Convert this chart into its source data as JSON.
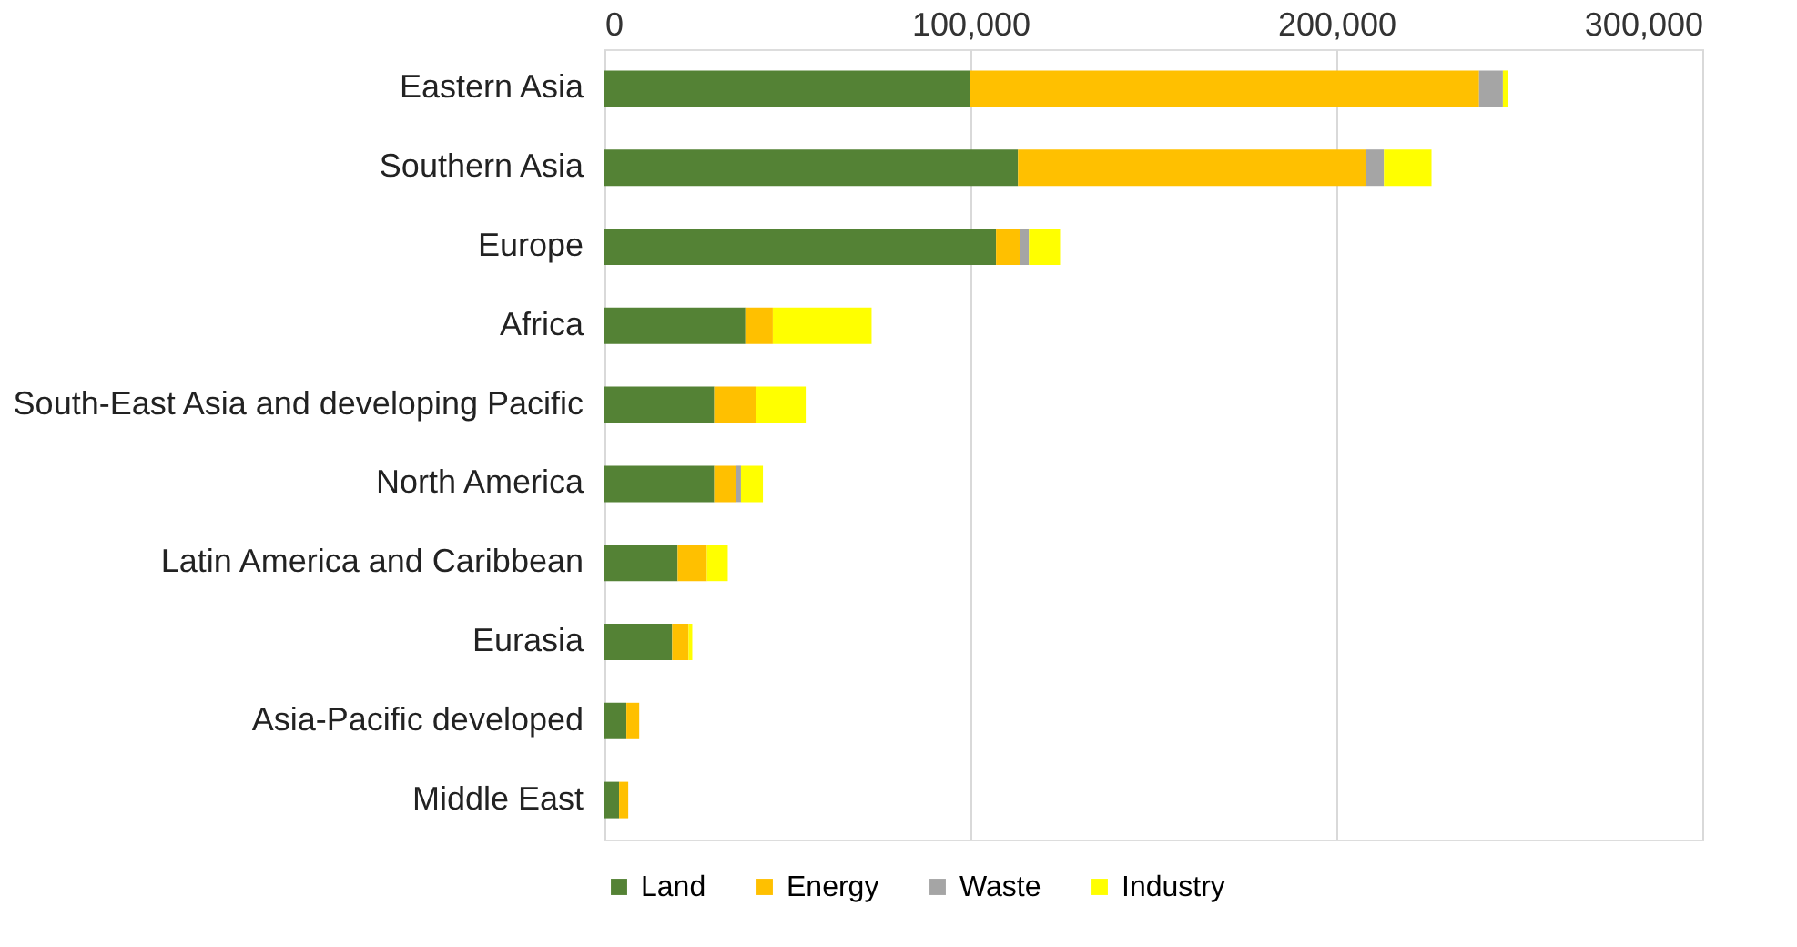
{
  "chart_data": {
    "type": "bar",
    "orientation": "horizontal",
    "stacked": true,
    "categories": [
      "Eastern Asia",
      "Southern Asia",
      "Europe",
      "Africa",
      "South-East Asia and developing Pacific",
      "North America",
      "Latin America and Caribbean",
      "Eurasia",
      "Asia-Pacific developed",
      "Middle East"
    ],
    "series": [
      {
        "name": "Land",
        "color": "#548235",
        "values": [
          100000,
          113000,
          107000,
          38500,
          30000,
          30000,
          20000,
          18500,
          6000,
          4000
        ]
      },
      {
        "name": "Energy",
        "color": "#ffc000",
        "values": [
          139000,
          95000,
          6500,
          7500,
          11500,
          6000,
          8000,
          4500,
          3500,
          2500
        ]
      },
      {
        "name": "Waste",
        "color": "#a5a5a5",
        "values": [
          6500,
          5000,
          2500,
          0,
          0,
          1300,
          0,
          0,
          0,
          0
        ]
      },
      {
        "name": "Industry",
        "color": "#ffff00",
        "values": [
          1500,
          13000,
          8500,
          27000,
          13500,
          6000,
          5700,
          1000,
          0,
          0
        ]
      }
    ],
    "xlim": [
      0,
      300000
    ],
    "xticks": [
      {
        "value": 0,
        "label": "0"
      },
      {
        "value": 100000,
        "label": "100,000"
      },
      {
        "value": 200000,
        "label": "200,000"
      },
      {
        "value": 300000,
        "label": "300,000"
      }
    ],
    "grid": "x",
    "legend": "bottom"
  }
}
